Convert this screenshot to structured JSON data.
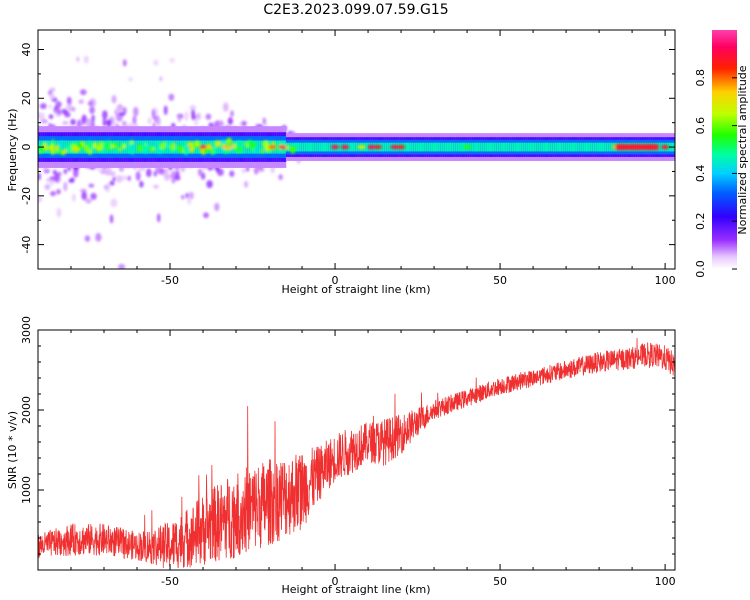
{
  "title": "C2E3.2023.099.07.59.G15",
  "colors": {
    "snr_line": "#f03030",
    "spectrum_background": "#ffffff"
  },
  "chart_data": [
    {
      "type": "heatmap",
      "name": "spectrogram",
      "xlabel": "Height of straight line (km)",
      "ylabel": "Frequency (Hz)",
      "xlim": [
        -90,
        103
      ],
      "ylim": [
        -50,
        48
      ],
      "xticks": [
        -50,
        0,
        50,
        100
      ],
      "yticks": [
        -40,
        -20,
        0,
        20,
        40
      ],
      "ytick_labels": [
        "-40",
        "-20",
        "0",
        "20",
        "40"
      ],
      "grid": false,
      "spectrum_band": {
        "center_frequency_hz": 0,
        "description": "energy concentrated near 0 Hz, broad and scattered below -15 km, narrow above"
      },
      "colorbar": {
        "label": "Normalized spectral amplitude",
        "range": [
          0,
          1
        ],
        "ticks": [
          "0.0",
          "0.2",
          "0.4",
          "0.6",
          "0.8"
        ],
        "tick_values": [
          0.0,
          0.2,
          0.4,
          0.6,
          0.8
        ],
        "colormap": "rainbow (white-violet-blue-cyan-green-yellow-red-magenta)"
      }
    },
    {
      "type": "line",
      "name": "snr",
      "xlabel": "Height of straight line (km)",
      "ylabel": "SNR (10 * v/v)",
      "xlim": [
        -90,
        103
      ],
      "ylim": [
        0,
        3000
      ],
      "xticks": [
        -50,
        0,
        50,
        100
      ],
      "yticks": [
        1000,
        2000,
        3000
      ],
      "ytick_labels": [
        "1000",
        "2000",
        "3000"
      ],
      "grid": false,
      "series": [
        {
          "x": [
            -90,
            -80,
            -70,
            -60,
            -50,
            -40,
            -30,
            -20,
            -10,
            -5,
            0,
            5,
            10,
            15,
            20,
            25,
            30,
            40,
            50,
            60,
            70,
            80,
            90,
            95,
            100,
            103
          ],
          "y": [
            300,
            380,
            380,
            300,
            300,
            500,
            700,
            850,
            1000,
            1200,
            1400,
            1500,
            1600,
            1600,
            1700,
            1850,
            2000,
            2150,
            2300,
            2400,
            2500,
            2600,
            2650,
            2700,
            2650,
            2550
          ],
          "noise_amplitude": [
            150,
            200,
            200,
            180,
            300,
            450,
            550,
            550,
            500,
            350,
            300,
            300,
            250,
            300,
            250,
            180,
            120,
            110,
            110,
            110,
            120,
            130,
            140,
            150,
            160,
            160
          ]
        }
      ]
    }
  ]
}
